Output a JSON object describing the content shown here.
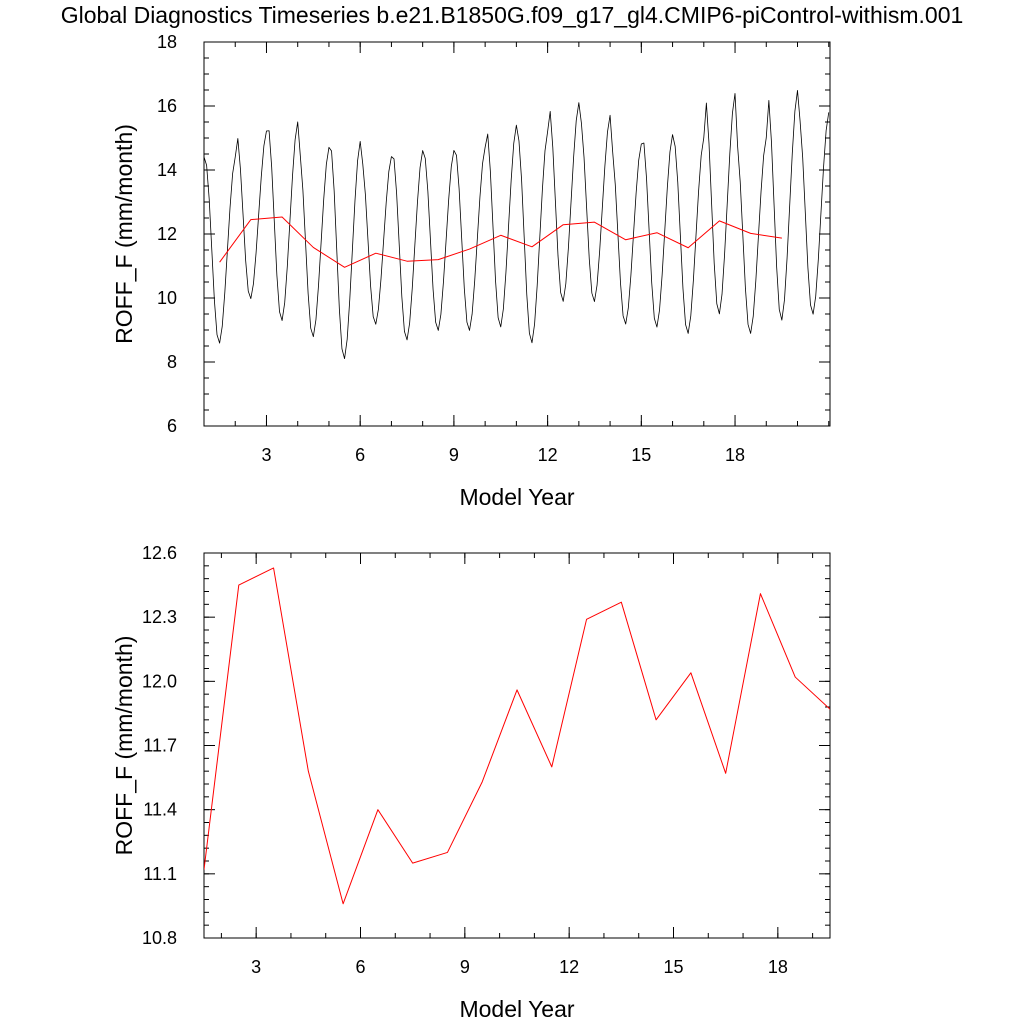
{
  "page": {
    "title": "Global Diagnostics Timeseries b.e21.B1850G.f09_g17_gl4.CMIP6-piControl-withism.001"
  },
  "colors": {
    "monthly_line": "#000000",
    "annual_line": "#ff0000",
    "axis": "#000000"
  },
  "chart_data": [
    {
      "type": "line",
      "xlabel": "Model Year",
      "ylabel": "ROFF_F (mm/month)",
      "xlim": [
        1.0,
        21.04
      ],
      "ylim": [
        6,
        18
      ],
      "xticks": [
        3,
        6,
        9,
        12,
        15,
        18
      ],
      "yticks": [
        6,
        8,
        10,
        12,
        14,
        16,
        18
      ],
      "ytick_labels": [
        "6",
        "8",
        "10",
        "12",
        "14",
        "16",
        "18"
      ],
      "xminor_step": 1,
      "yminor_step": 0.5,
      "grid": false,
      "series": [
        {
          "style": "monthly",
          "color": "#000000",
          "monthly_start_year": 1.0,
          "monthly_step": 0.08333,
          "monthly_peaks": [
            14.5,
            15.3,
            15.6,
            14.8,
            15.0,
            14.5,
            14.7,
            14.7,
            14.8,
            15.5,
            15.3,
            16.2,
            15.8,
            14.9,
            15.2,
            15.1,
            16.5,
            15.1,
            16.6,
            15.9
          ],
          "monthly_troughs": [
            8.5,
            9.9,
            9.2,
            8.7,
            8.0,
            9.1,
            8.6,
            8.9,
            8.9,
            9.0,
            8.5,
            9.8,
            9.8,
            9.1,
            9.0,
            8.8,
            9.4,
            8.8,
            9.2,
            9.4
          ]
        },
        {
          "style": "annual",
          "color": "#ff0000",
          "x": [
            1.5,
            2.5,
            3.5,
            4.5,
            5.5,
            6.5,
            7.5,
            8.5,
            9.5,
            10.5,
            11.5,
            12.5,
            13.5,
            14.5,
            15.5,
            16.5,
            17.5,
            18.5,
            19.5
          ],
          "values": [
            11.12,
            12.45,
            12.53,
            11.58,
            10.96,
            11.4,
            11.15,
            11.2,
            11.53,
            11.96,
            11.6,
            12.29,
            12.37,
            11.82,
            12.04,
            11.57,
            12.41,
            12.02,
            11.87
          ]
        }
      ]
    },
    {
      "type": "line",
      "xlabel": "Model Year",
      "ylabel": "ROFF_F (mm/month)",
      "xlim": [
        1.5,
        19.5
      ],
      "ylim": [
        10.8,
        12.6
      ],
      "xticks": [
        3,
        6,
        9,
        12,
        15,
        18
      ],
      "yticks": [
        10.8,
        11.1,
        11.4,
        11.7,
        12.0,
        12.3,
        12.6
      ],
      "ytick_labels": [
        "10.8",
        "11.1",
        "11.4",
        "11.7",
        "12.0",
        "12.3",
        "12.6"
      ],
      "xminor_step": 1,
      "yminor_step": 0.06,
      "grid": false,
      "series": [
        {
          "style": "annual",
          "color": "#ff0000",
          "x": [
            1.5,
            2.5,
            3.5,
            4.5,
            5.5,
            6.5,
            7.5,
            8.5,
            9.5,
            10.5,
            11.5,
            12.5,
            13.5,
            14.5,
            15.5,
            16.5,
            17.5,
            18.5,
            19.5
          ],
          "values": [
            11.12,
            12.45,
            12.53,
            11.58,
            10.96,
            11.4,
            11.15,
            11.2,
            11.53,
            11.96,
            11.6,
            12.29,
            12.37,
            11.82,
            12.04,
            11.57,
            12.41,
            12.02,
            11.87
          ]
        }
      ]
    }
  ]
}
